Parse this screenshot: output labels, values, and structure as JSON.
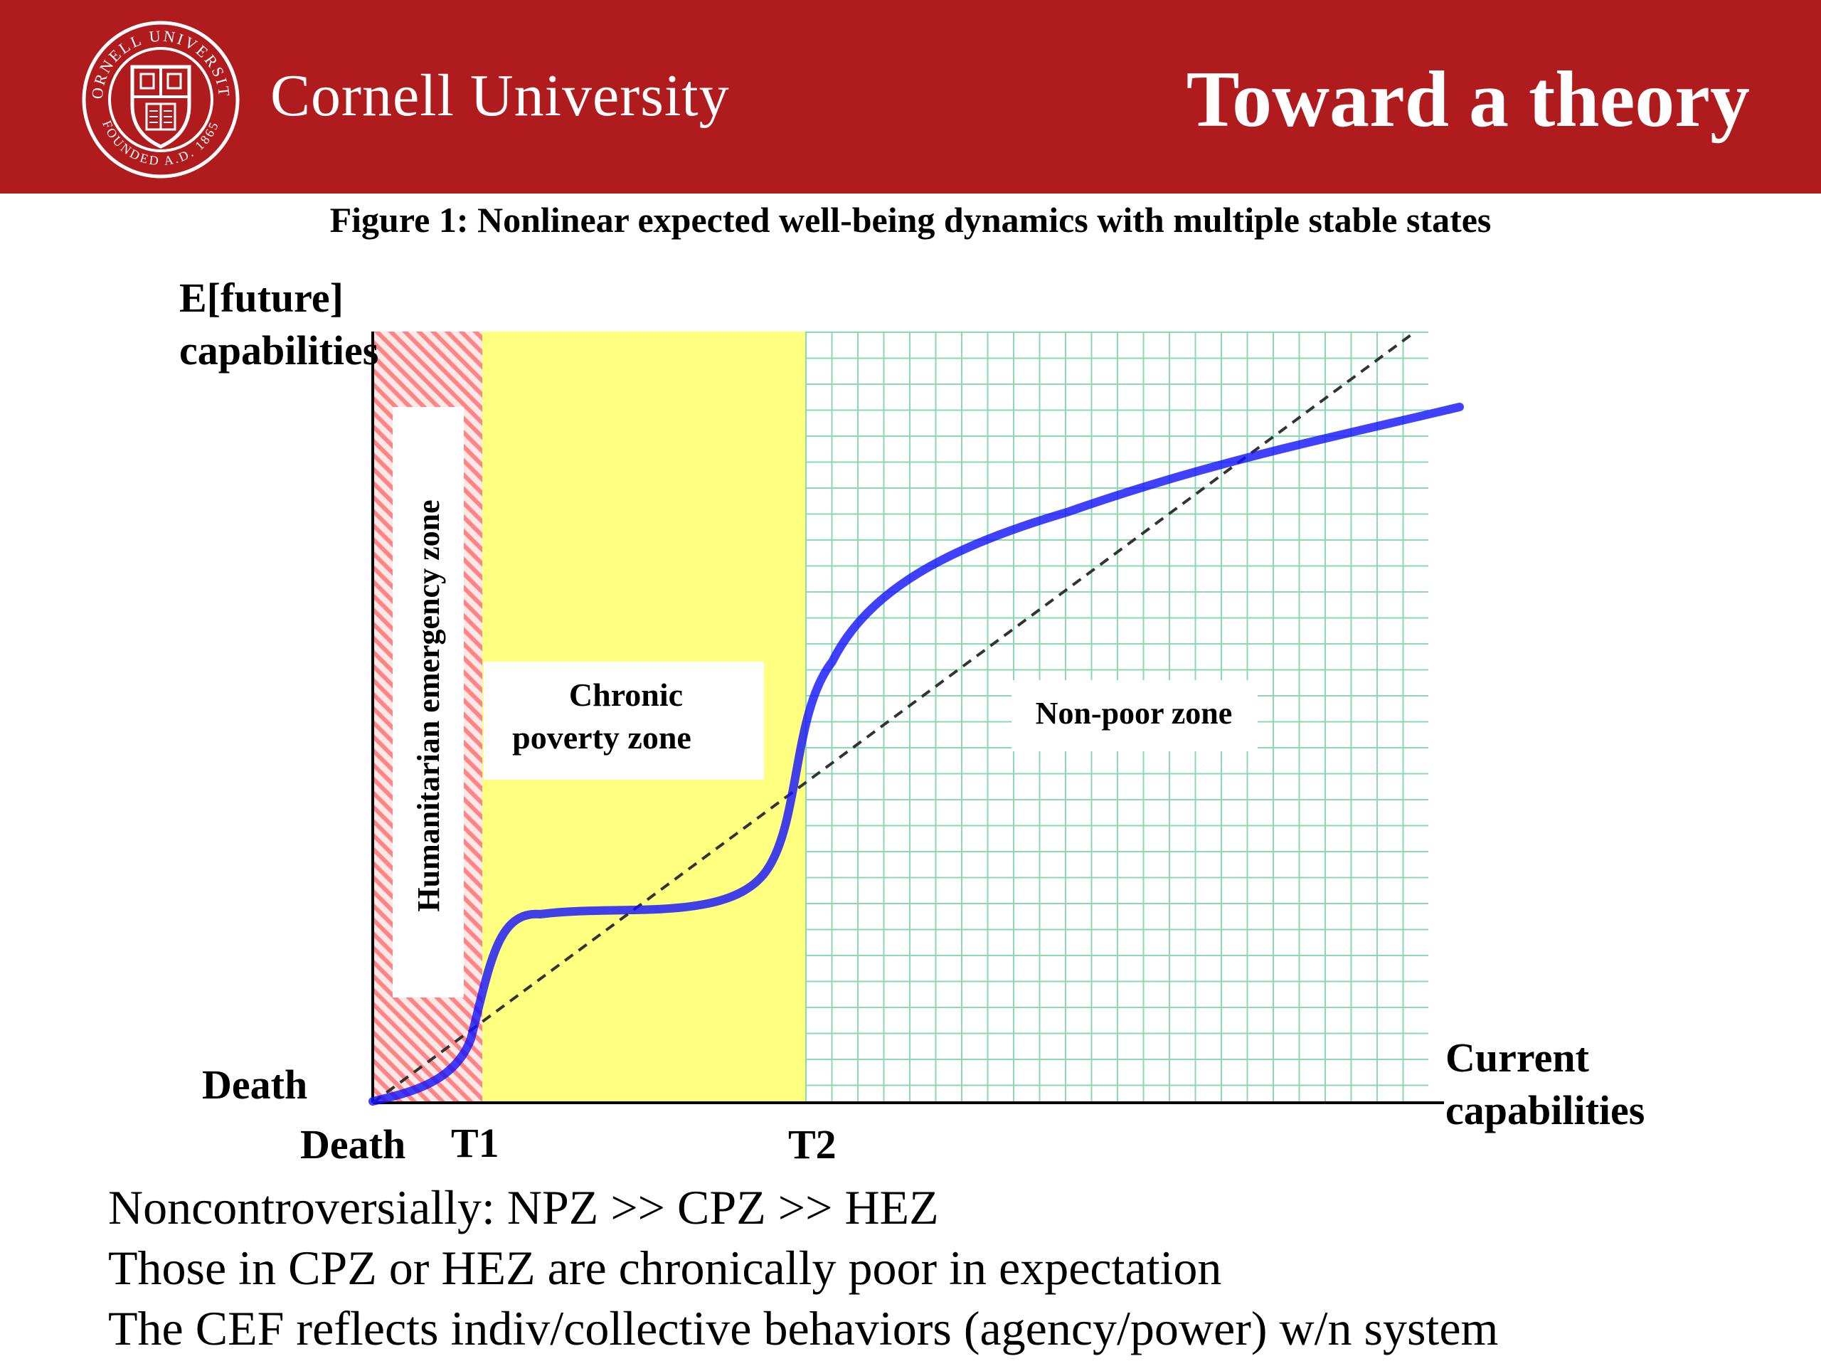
{
  "header": {
    "brand": "Cornell University",
    "title": "Toward a theory",
    "seal": {
      "ring_text_top": "CORNELL UNIVERSITY",
      "ring_text_bottom": "FOUNDED A.D. 1865"
    }
  },
  "figure": {
    "caption": "Figure 1: Nonlinear expected well-being dynamics with multiple stable states",
    "y_axis_label_line1": "E[future]",
    "y_axis_label_line2": "capabilities",
    "x_axis_label_line1": "Current",
    "x_axis_label_line2": "capabilities",
    "y_axis_origin_label": "Death",
    "x_ticks": [
      "Death",
      "T1",
      "T2"
    ],
    "zones": {
      "humanitarian": "Humanitarian emergency zone",
      "chronic_line1": "Chronic",
      "chronic_line2": "poverty zone",
      "nonpoor": "Non-poor zone"
    },
    "colors": {
      "header_red": "#b01b1e",
      "hez_hatch": "#ff8080",
      "cpz_fill": "#ffff80",
      "npz_grid": "#7fd8a8",
      "curve": "#0000ff"
    }
  },
  "bullets": [
    "Noncontroversially: NPZ >> CPZ >> HEZ",
    "Those in CPZ or HEZ are chronically poor in expectation",
    "The CEF reflects indiv/collective behaviors (agency/power) w/n system"
  ]
}
